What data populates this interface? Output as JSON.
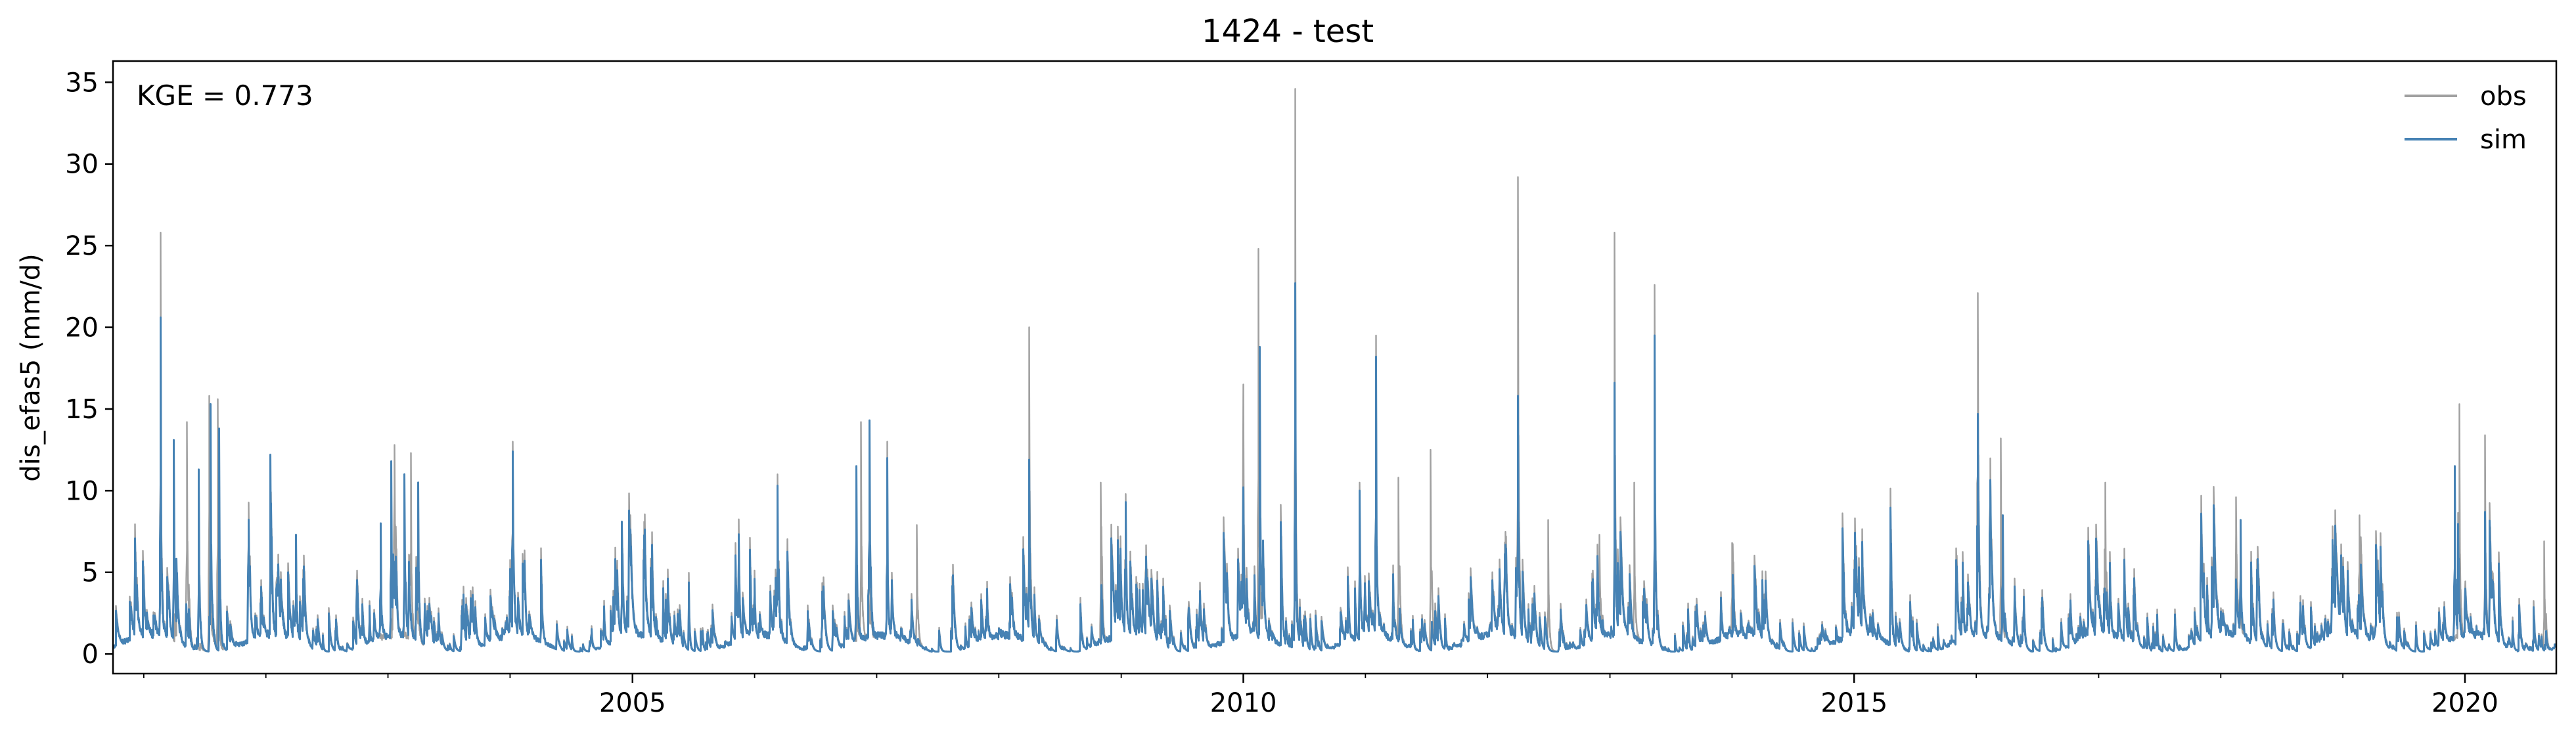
{
  "chart_data": {
    "type": "line",
    "title": "1424 - test",
    "xlabel": "",
    "ylabel": "dis_efas5 (mm/d)",
    "annotation": "KGE = 0.773",
    "xlim": [
      "2000-10-01",
      "2020-09-30"
    ],
    "ylim": [
      -1.2,
      36.3
    ],
    "xticks": [
      {
        "label": "2005",
        "date": "2005-01-01"
      },
      {
        "label": "2010",
        "date": "2010-01-01"
      },
      {
        "label": "2015",
        "date": "2015-01-01"
      },
      {
        "label": "2020",
        "date": "2020-01-01"
      }
    ],
    "yticks": [
      0,
      5,
      10,
      15,
      20,
      25,
      30,
      35
    ],
    "grid": false,
    "legend": {
      "position": "top-right",
      "entries": [
        "obs",
        "sim"
      ]
    },
    "series": [
      {
        "name": "obs",
        "color": "#a0a0a0",
        "peaks": [
          {
            "x": "2001-02-20",
            "y": 25.8
          },
          {
            "x": "2001-05-10",
            "y": 14.2
          },
          {
            "x": "2001-07-15",
            "y": 15.8
          },
          {
            "x": "2001-08-10",
            "y": 15.6
          },
          {
            "x": "2002-01-15",
            "y": 12.2
          },
          {
            "x": "2002-04-01",
            "y": 7.3
          },
          {
            "x": "2003-01-20",
            "y": 12.8
          },
          {
            "x": "2003-03-10",
            "y": 12.3
          },
          {
            "x": "2004-01-10",
            "y": 13.0
          },
          {
            "x": "2004-12-01",
            "y": 8.1
          },
          {
            "x": "2006-03-10",
            "y": 11.0
          },
          {
            "x": "2006-11-15",
            "y": 14.2
          },
          {
            "x": "2007-02-01",
            "y": 13.0
          },
          {
            "x": "2007-05-01",
            "y": 7.9
          },
          {
            "x": "2008-04-01",
            "y": 20.0
          },
          {
            "x": "2008-11-01",
            "y": 10.5
          },
          {
            "x": "2009-01-15",
            "y": 9.8
          },
          {
            "x": "2010-01-01",
            "y": 16.5
          },
          {
            "x": "2010-02-15",
            "y": 24.8
          },
          {
            "x": "2010-06-05",
            "y": 34.6
          },
          {
            "x": "2010-12-15",
            "y": 10.5
          },
          {
            "x": "2011-02-01",
            "y": 19.5
          },
          {
            "x": "2011-04-10",
            "y": 10.8
          },
          {
            "x": "2011-07-15",
            "y": 12.5
          },
          {
            "x": "2012-04-01",
            "y": 29.2
          },
          {
            "x": "2012-07-01",
            "y": 8.2
          },
          {
            "x": "2012-12-01",
            "y": 7.3
          },
          {
            "x": "2013-01-15",
            "y": 25.8
          },
          {
            "x": "2013-03-15",
            "y": 10.5
          },
          {
            "x": "2013-05-15",
            "y": 22.6
          },
          {
            "x": "2014-01-01",
            "y": 6.8
          },
          {
            "x": "2016-01-05",
            "y": 22.1
          },
          {
            "x": "2016-03-15",
            "y": 13.2
          },
          {
            "x": "2017-01-20",
            "y": 10.5
          },
          {
            "x": "2018-02-15",
            "y": 9.6
          },
          {
            "x": "2019-02-20",
            "y": 8.5
          },
          {
            "x": "2019-12-15",
            "y": 15.3
          },
          {
            "x": "2020-03-01",
            "y": 13.4
          },
          {
            "x": "2020-08-25",
            "y": 6.9
          }
        ]
      },
      {
        "name": "sim",
        "color": "#4682b4",
        "peaks": [
          {
            "x": "2001-02-20",
            "y": 20.6
          },
          {
            "x": "2001-04-01",
            "y": 13.1
          },
          {
            "x": "2001-06-15",
            "y": 11.3
          },
          {
            "x": "2001-07-20",
            "y": 15.3
          },
          {
            "x": "2001-08-15",
            "y": 13.8
          },
          {
            "x": "2002-01-15",
            "y": 12.2
          },
          {
            "x": "2002-04-01",
            "y": 7.3
          },
          {
            "x": "2002-12-10",
            "y": 8.0
          },
          {
            "x": "2003-01-10",
            "y": 11.8
          },
          {
            "x": "2003-02-20",
            "y": 11.0
          },
          {
            "x": "2003-04-01",
            "y": 10.5
          },
          {
            "x": "2004-01-10",
            "y": 12.4
          },
          {
            "x": "2004-12-01",
            "y": 8.1
          },
          {
            "x": "2006-03-10",
            "y": 10.3
          },
          {
            "x": "2006-11-01",
            "y": 11.5
          },
          {
            "x": "2006-12-10",
            "y": 14.3
          },
          {
            "x": "2007-02-01",
            "y": 12.0
          },
          {
            "x": "2008-04-01",
            "y": 11.9
          },
          {
            "x": "2009-01-15",
            "y": 9.3
          },
          {
            "x": "2010-01-01",
            "y": 10.2
          },
          {
            "x": "2010-02-20",
            "y": 18.8
          },
          {
            "x": "2010-06-05",
            "y": 22.7
          },
          {
            "x": "2010-12-15",
            "y": 10.0
          },
          {
            "x": "2011-02-01",
            "y": 18.2
          },
          {
            "x": "2012-04-01",
            "y": 15.8
          },
          {
            "x": "2013-01-15",
            "y": 16.6
          },
          {
            "x": "2013-05-15",
            "y": 19.5
          },
          {
            "x": "2016-01-05",
            "y": 14.7
          },
          {
            "x": "2016-03-20",
            "y": 8.5
          },
          {
            "x": "2018-03-01",
            "y": 8.2
          },
          {
            "x": "2019-12-01",
            "y": 11.5
          },
          {
            "x": "2020-03-01",
            "y": 8.7
          }
        ]
      }
    ]
  }
}
